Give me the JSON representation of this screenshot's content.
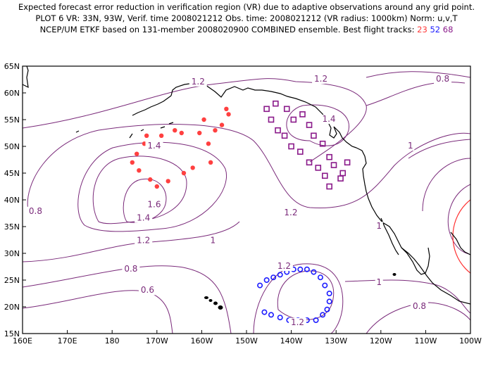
{
  "title": {
    "line1": "Expected forecast error reduction in verification region (VR) due to adaptive observations around any grid point.",
    "line2": "PLOT 6 VR: 33N, 93W, Verif. time 2008021212 Obs. time: 2008021212 (VR radius: 1000km) Norm: u,v,T",
    "line3_prefix": "NCEP/UM ETKF based on 131-member 2008020900 COMBINED ensemble.  Best flight tracks:",
    "track_red": "23",
    "track_blue": "52",
    "track_purple": "68"
  },
  "axes": {
    "lon_labels": [
      "160E",
      "170E",
      "180",
      "170W",
      "160W",
      "150W",
      "140W",
      "130W",
      "120W",
      "110W",
      "100W"
    ],
    "lat_labels": [
      "15N",
      "20N",
      "25N",
      "30N",
      "35N",
      "40N",
      "45N",
      "50N",
      "55N",
      "60N",
      "65N"
    ]
  },
  "contour_labels": [
    {
      "text": "1.2",
      "lon": -160.8,
      "lat": 61.6
    },
    {
      "text": "1.2",
      "lon": -133.4,
      "lat": 62.1
    },
    {
      "text": "0.8",
      "lon": -106.2,
      "lat": 62.1
    },
    {
      "text": "1.4",
      "lon": -131.6,
      "lat": 54.6
    },
    {
      "text": "1",
      "lon": -113.4,
      "lat": 49.6
    },
    {
      "text": "1.4",
      "lon": -170.6,
      "lat": 49.6
    },
    {
      "text": "1.6",
      "lon": -170.6,
      "lat": 38.6
    },
    {
      "text": "0.8",
      "lon": 162.9,
      "lat": 37.4
    },
    {
      "text": "1.2",
      "lon": -140.1,
      "lat": 37.1
    },
    {
      "text": "1",
      "lon": -120.4,
      "lat": 34.6
    },
    {
      "text": "1.4",
      "lon": -173.0,
      "lat": 36.1
    },
    {
      "text": "1.2",
      "lon": -173.0,
      "lat": 31.9
    },
    {
      "text": "1",
      "lon": -157.5,
      "lat": 31.9
    },
    {
      "text": "1.2",
      "lon": -141.6,
      "lat": 27.1
    },
    {
      "text": "0.8",
      "lon": -175.8,
      "lat": 26.6
    },
    {
      "text": "1",
      "lon": -120.4,
      "lat": 24.1
    },
    {
      "text": "0.6",
      "lon": -172.1,
      "lat": 22.6
    },
    {
      "text": "1.2",
      "lon": -138.6,
      "lat": 16.6
    },
    {
      "text": "0.8",
      "lon": -111.4,
      "lat": 19.6
    }
  ],
  "tracks": {
    "red": {
      "color": "#ff4040",
      "points": [
        [
          -175.5,
          47
        ],
        [
          -174.5,
          48.6
        ],
        [
          -174,
          45.5
        ],
        [
          -172.8,
          50.5
        ],
        [
          -172.3,
          52
        ],
        [
          -171.5,
          43.8
        ],
        [
          -170,
          42.5
        ],
        [
          -169,
          52
        ],
        [
          -167.5,
          43.5
        ],
        [
          -166,
          53
        ],
        [
          -164,
          45
        ],
        [
          -164.5,
          52.5
        ],
        [
          -162,
          46
        ],
        [
          -160.5,
          52.5
        ],
        [
          -159.5,
          55
        ],
        [
          -158.5,
          50.5
        ],
        [
          -158,
          47
        ],
        [
          -157,
          53
        ],
        [
          -155.5,
          54
        ],
        [
          -154,
          56
        ],
        [
          -154.5,
          57
        ]
      ]
    },
    "purple": {
      "color": "#8a1a8a",
      "points": [
        [
          -145.5,
          57
        ],
        [
          -143.5,
          58
        ],
        [
          -144.5,
          55
        ],
        [
          -141,
          57
        ],
        [
          -143,
          53
        ],
        [
          -139.5,
          55
        ],
        [
          -141.5,
          52
        ],
        [
          -137.5,
          56
        ],
        [
          -140,
          50
        ],
        [
          -136,
          54
        ],
        [
          -138,
          49
        ],
        [
          -135,
          52
        ],
        [
          -136,
          47
        ],
        [
          -133,
          50.5
        ],
        [
          -134,
          46
        ],
        [
          -131.5,
          48
        ],
        [
          -132.5,
          44.5
        ],
        [
          -130.5,
          46.5
        ],
        [
          -128.5,
          45
        ],
        [
          -127.5,
          47
        ],
        [
          -131.5,
          42.5
        ],
        [
          -129,
          44
        ]
      ]
    },
    "blue": {
      "color": "#1c1cff",
      "points": [
        [
          -147,
          24
        ],
        [
          -145.5,
          25
        ],
        [
          -144,
          25.5
        ],
        [
          -142.5,
          26
        ],
        [
          -141,
          26.5
        ],
        [
          -139.5,
          27
        ],
        [
          -138,
          27
        ],
        [
          -136.5,
          27
        ],
        [
          -135,
          26.5
        ],
        [
          -133.5,
          25.5
        ],
        [
          -132.5,
          24
        ],
        [
          -131.5,
          22.5
        ],
        [
          -131.5,
          21
        ],
        [
          -132,
          19.5
        ],
        [
          -133,
          18.5
        ],
        [
          -134.5,
          17.5
        ],
        [
          -136.5,
          17.5
        ],
        [
          -138.5,
          17.5
        ],
        [
          -140.5,
          17.5
        ],
        [
          -142.5,
          18
        ],
        [
          -144.5,
          18.5
        ],
        [
          -146,
          19
        ]
      ]
    }
  }
}
